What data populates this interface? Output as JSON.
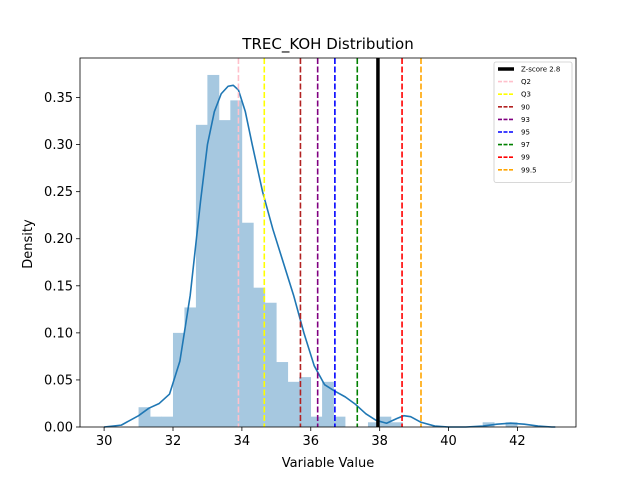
{
  "chart_data": {
    "type": "histogram",
    "title": "TREC_KOH Distribution",
    "xlabel": "Variable Value",
    "ylabel": "Density",
    "xlim": [
      29.3,
      43.7
    ],
    "ylim": [
      0,
      0.392
    ],
    "x_ticks": [
      30,
      32,
      34,
      36,
      38,
      40,
      42
    ],
    "y_ticks": [
      0.0,
      0.05,
      0.1,
      0.15,
      0.2,
      0.25,
      0.3,
      0.35
    ],
    "y_tick_labels": [
      "0.00",
      "0.05",
      "0.10",
      "0.15",
      "0.20",
      "0.25",
      "0.30",
      "0.35"
    ],
    "grid": false,
    "histogram": {
      "color": "#a6c8e0",
      "bin_width": 0.333,
      "bin_start": 31.0,
      "densities": [
        0.021,
        0.011,
        0.011,
        0.1,
        0.127,
        0.321,
        0.374,
        0.326,
        0.347,
        0.217,
        0.148,
        0.132,
        0.069,
        0.048,
        0.053,
        0.011,
        0.048,
        0.011,
        0.0,
        0.0,
        0.005,
        0.011,
        0.005,
        0.0,
        0.0,
        0.0,
        0.0,
        0.0,
        0.0,
        0.0,
        0.005,
        0.0,
        0.005
      ]
    },
    "kde": {
      "color": "#1f77b4",
      "x": [
        30.0,
        30.5,
        31.0,
        31.3,
        31.6,
        31.9,
        32.2,
        32.5,
        32.8,
        33.0,
        33.2,
        33.4,
        33.6,
        33.75,
        33.9,
        34.1,
        34.3,
        34.6,
        34.9,
        35.2,
        35.5,
        35.8,
        36.1,
        36.4,
        36.7,
        37.0,
        37.3,
        37.6,
        37.9,
        38.2,
        38.5,
        38.7,
        38.9,
        39.2,
        39.6,
        40.0,
        40.5,
        41.0,
        41.4,
        41.8,
        42.2,
        42.6,
        43.0,
        43.1
      ],
      "y": [
        0.0,
        0.002,
        0.012,
        0.02,
        0.025,
        0.035,
        0.07,
        0.14,
        0.24,
        0.3,
        0.335,
        0.354,
        0.362,
        0.363,
        0.358,
        0.335,
        0.3,
        0.25,
        0.21,
        0.175,
        0.14,
        0.1,
        0.065,
        0.045,
        0.038,
        0.032,
        0.024,
        0.014,
        0.007,
        0.004,
        0.009,
        0.012,
        0.011,
        0.005,
        0.001,
        0.0,
        0.0,
        0.001,
        0.003,
        0.004,
        0.003,
        0.001,
        0.0,
        0.0
      ]
    },
    "vlines": [
      {
        "label": "Z-score 2.8",
        "x": 37.95,
        "color": "#000000",
        "style": "solid"
      },
      {
        "label": "Q2",
        "x": 33.9,
        "color": "#ffc0cb",
        "style": "dashed"
      },
      {
        "label": "Q3",
        "x": 34.65,
        "color": "#ffff00",
        "style": "dashed"
      },
      {
        "label": "90",
        "x": 35.7,
        "color": "#b22222",
        "style": "dashed"
      },
      {
        "label": "93",
        "x": 36.2,
        "color": "#800080",
        "style": "dashed"
      },
      {
        "label": "95",
        "x": 36.7,
        "color": "#0000ff",
        "style": "dashed"
      },
      {
        "label": "97",
        "x": 37.35,
        "color": "#008000",
        "style": "dashed"
      },
      {
        "label": "99",
        "x": 38.65,
        "color": "#ff0000",
        "style": "dashed"
      },
      {
        "label": "99.5",
        "x": 39.2,
        "color": "#ffa500",
        "style": "dashed"
      }
    ],
    "legend_position": "top-right"
  }
}
